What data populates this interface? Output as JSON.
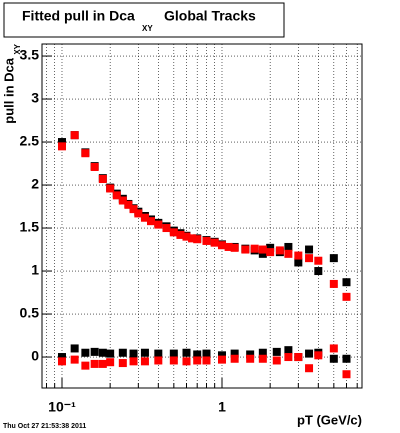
{
  "chart_data": {
    "type": "scatter",
    "title": "Fitted pull in Dca",
    "title_subscript": "XY",
    "title_suffix": "Global Tracks",
    "ylabel": "pull in Dca",
    "ylabel_subscript": "XY",
    "xlabel": "pT (GeV/c)",
    "timestamp": "Thu Oct 27 21:53:38 2011",
    "xlog": true,
    "grid": true,
    "xlim": [
      0.075,
      7.5
    ],
    "ylim": [
      -0.36,
      3.64
    ],
    "xticks": [
      {
        "value": 0.1,
        "label": "10⁻¹"
      },
      1
    ],
    "yticks": [
      0,
      0.5,
      1,
      1.5,
      2,
      2.5,
      3,
      3.5
    ],
    "series": [
      {
        "color": "#000000",
        "x": [
          0.1,
          0.12,
          0.14,
          0.16,
          0.18,
          0.2,
          0.22,
          0.24,
          0.26,
          0.28,
          0.3,
          0.33,
          0.36,
          0.4,
          0.45,
          0.5,
          0.55,
          0.6,
          0.7,
          0.8,
          0.9,
          1.0,
          1.2,
          1.4,
          1.6,
          1.8,
          2.0,
          2.3,
          2.6,
          3.0,
          3.5,
          4.0,
          5.0,
          6.0
        ],
        "values": [
          2.5,
          2.58,
          2.38,
          2.22,
          2.08,
          1.97,
          1.9,
          1.84,
          1.78,
          1.73,
          1.69,
          1.64,
          1.6,
          1.56,
          1.52,
          1.47,
          1.44,
          1.41,
          1.38,
          1.36,
          1.34,
          1.31,
          1.28,
          1.26,
          1.24,
          1.2,
          1.27,
          1.22,
          1.28,
          1.1,
          1.25,
          1.0,
          1.15,
          0.87
        ]
      },
      {
        "color": "#ff0000",
        "x": [
          0.1,
          0.12,
          0.14,
          0.16,
          0.18,
          0.2,
          0.22,
          0.24,
          0.26,
          0.28,
          0.3,
          0.33,
          0.36,
          0.4,
          0.45,
          0.5,
          0.55,
          0.6,
          0.65,
          0.7,
          0.8,
          0.9,
          1.0,
          1.1,
          1.2,
          1.4,
          1.6,
          1.8,
          2.0,
          2.3,
          2.6,
          3.0,
          3.5,
          4.0,
          5.0,
          6.0
        ],
        "values": [
          2.45,
          2.58,
          2.37,
          2.21,
          2.07,
          1.96,
          1.88,
          1.82,
          1.77,
          1.72,
          1.67,
          1.62,
          1.58,
          1.54,
          1.5,
          1.45,
          1.42,
          1.4,
          1.38,
          1.37,
          1.35,
          1.33,
          1.3,
          1.28,
          1.27,
          1.25,
          1.26,
          1.25,
          1.22,
          1.24,
          1.2,
          1.18,
          1.15,
          1.12,
          0.85,
          0.7
        ]
      },
      {
        "color": "#000000",
        "x": [
          0.1,
          0.12,
          0.14,
          0.16,
          0.18,
          0.2,
          0.24,
          0.28,
          0.33,
          0.4,
          0.5,
          0.6,
          0.7,
          0.8,
          1.0,
          1.2,
          1.5,
          1.8,
          2.2,
          2.6,
          3.0,
          3.5,
          4.0,
          5.0,
          6.0
        ],
        "values": [
          0.0,
          0.1,
          0.05,
          0.06,
          0.05,
          0.04,
          0.05,
          0.04,
          0.05,
          0.04,
          0.04,
          0.05,
          0.03,
          0.04,
          0.02,
          0.04,
          0.03,
          0.05,
          0.06,
          0.08,
          0.0,
          0.04,
          0.05,
          -0.02,
          -0.02
        ]
      },
      {
        "color": "#ff0000",
        "x": [
          0.1,
          0.12,
          0.14,
          0.16,
          0.18,
          0.2,
          0.24,
          0.28,
          0.33,
          0.4,
          0.5,
          0.6,
          0.7,
          0.8,
          1.0,
          1.2,
          1.5,
          1.8,
          2.2,
          2.6,
          3.0,
          3.5,
          4.0,
          5.0,
          6.0
        ],
        "values": [
          -0.05,
          -0.03,
          -0.1,
          -0.08,
          -0.08,
          -0.06,
          -0.07,
          -0.05,
          -0.05,
          -0.04,
          -0.04,
          -0.05,
          -0.04,
          -0.04,
          -0.03,
          -0.02,
          -0.02,
          -0.02,
          -0.04,
          0.0,
          0.0,
          -0.13,
          0.02,
          0.1,
          -0.2
        ]
      }
    ]
  }
}
